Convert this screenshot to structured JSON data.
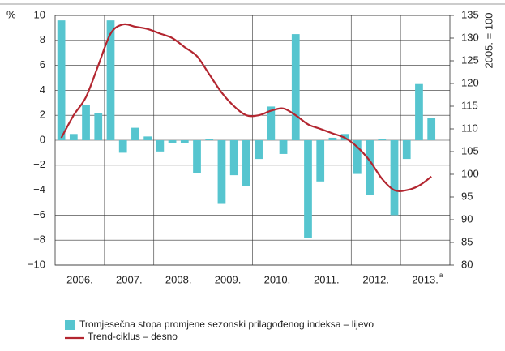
{
  "chart_data": {
    "type": "bar-line",
    "y_axis_label": "%",
    "y2_axis_label": "2005. = 100",
    "years": [
      "2006.",
      "2007.",
      "2008.",
      "2009.",
      "2010.",
      "2011.",
      "2012.",
      "2013."
    ],
    "footnote_marker": "a",
    "ylim": [
      -10,
      10
    ],
    "yticks": [
      {
        "value": -10,
        "label": "−10"
      },
      {
        "value": -8,
        "label": "−8"
      },
      {
        "value": -6,
        "label": "−6"
      },
      {
        "value": -4,
        "label": "−4"
      },
      {
        "value": -2,
        "label": "−2"
      },
      0,
      2,
      4,
      6,
      8,
      10
    ],
    "y2lim": [
      80,
      135
    ],
    "y2ticks": [
      80,
      85,
      90,
      95,
      100,
      105,
      110,
      115,
      120,
      125,
      130,
      135
    ],
    "grid": true,
    "series": [
      {
        "name": "Tromjesečna stopa promjene sezonski prilagođenog indeksa – lijevo",
        "color": "#56c5cf",
        "kind": "bar",
        "values": [
          9.6,
          0.5,
          2.8,
          2.2,
          9.6,
          -1.0,
          1.0,
          0.3,
          -0.9,
          -0.2,
          -0.2,
          -2.6,
          0.1,
          -5.1,
          -2.8,
          -3.7,
          -1.5,
          2.7,
          -1.1,
          8.5,
          -7.8,
          -3.3,
          0.2,
          0.5,
          -2.7,
          -4.4,
          0.1,
          -6.0,
          -1.5,
          4.5,
          1.8
        ]
      },
      {
        "name": "Trend-ciklus – desno",
        "color": "#b32630",
        "kind": "line",
        "axis": "y2",
        "values": [
          108,
          113,
          117,
          124,
          131,
          133,
          132.5,
          132,
          131,
          130,
          128,
          126,
          122,
          118,
          115,
          113,
          113,
          114,
          114.5,
          113,
          111,
          110,
          109,
          108,
          106,
          103,
          99,
          96.5,
          96.5,
          97.5,
          99.5
        ]
      }
    ]
  }
}
